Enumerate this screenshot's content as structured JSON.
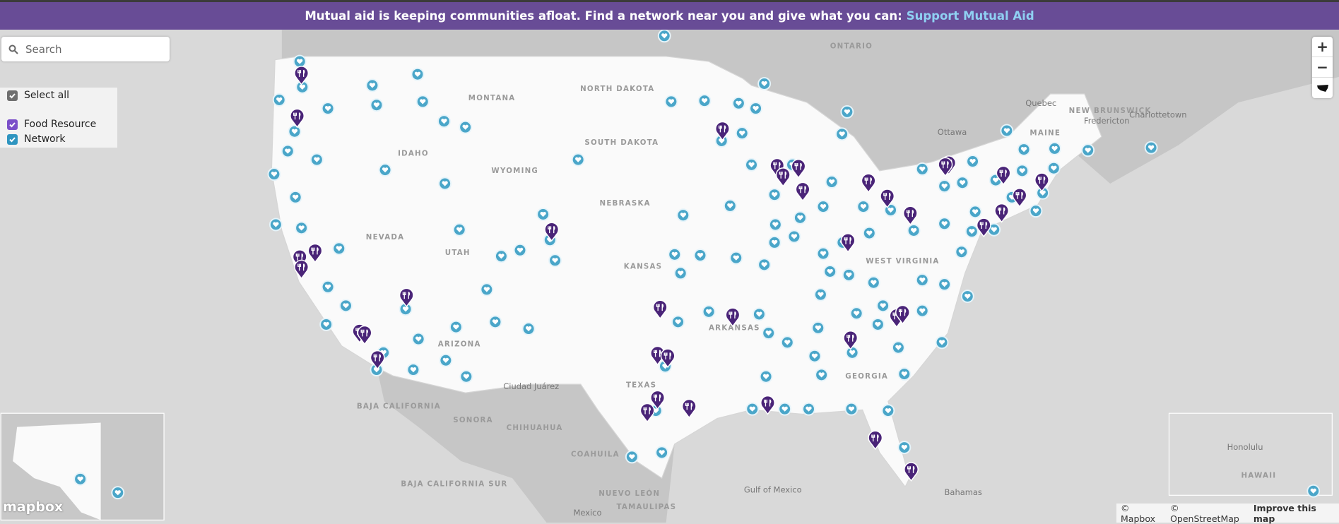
{
  "banner": {
    "text": "Mutual aid is keeping communities afloat. Find a network near you and give what you can:",
    "link": "Support Mutual Aid"
  },
  "search": {
    "placeholder": "Search"
  },
  "legend": {
    "items": [
      "Select all",
      "Food Resource",
      "Network"
    ]
  },
  "zoom": {
    "in": "+",
    "out": "−"
  },
  "map_labels": [
    "ONTARIO",
    "MONTANA",
    "NORTH DAKOTA",
    "SOUTH DAKOTA",
    "WYOMING",
    "IDAHO",
    "NEBRASKA",
    "NEVADA",
    "UTAH",
    "KANSAS",
    "ARIZONA",
    "TEXAS",
    "ARKANSAS",
    "GEORGIA",
    "WEST VIRGINIA",
    "MAINE",
    "Quebec",
    "Ottawa",
    "NEW BRUNSWICK",
    "Fredericton",
    "Charlottetown",
    "Ciudad Juárez",
    "BAJA CALIFORNIA",
    "SONORA",
    "CHIHUAHUA",
    "COAHUILA",
    "NUEVO LEÓN",
    "TAMAULIPAS",
    "BAJA CALIFORNIA SUR",
    "Gulf of Mexico",
    "Bahamas",
    "Mexico",
    "Honolulu",
    "HAWAII"
  ],
  "logo": "mapbox",
  "attribution": [
    "© Mapbox",
    "© OpenStreetMap",
    "Improve this map"
  ]
}
